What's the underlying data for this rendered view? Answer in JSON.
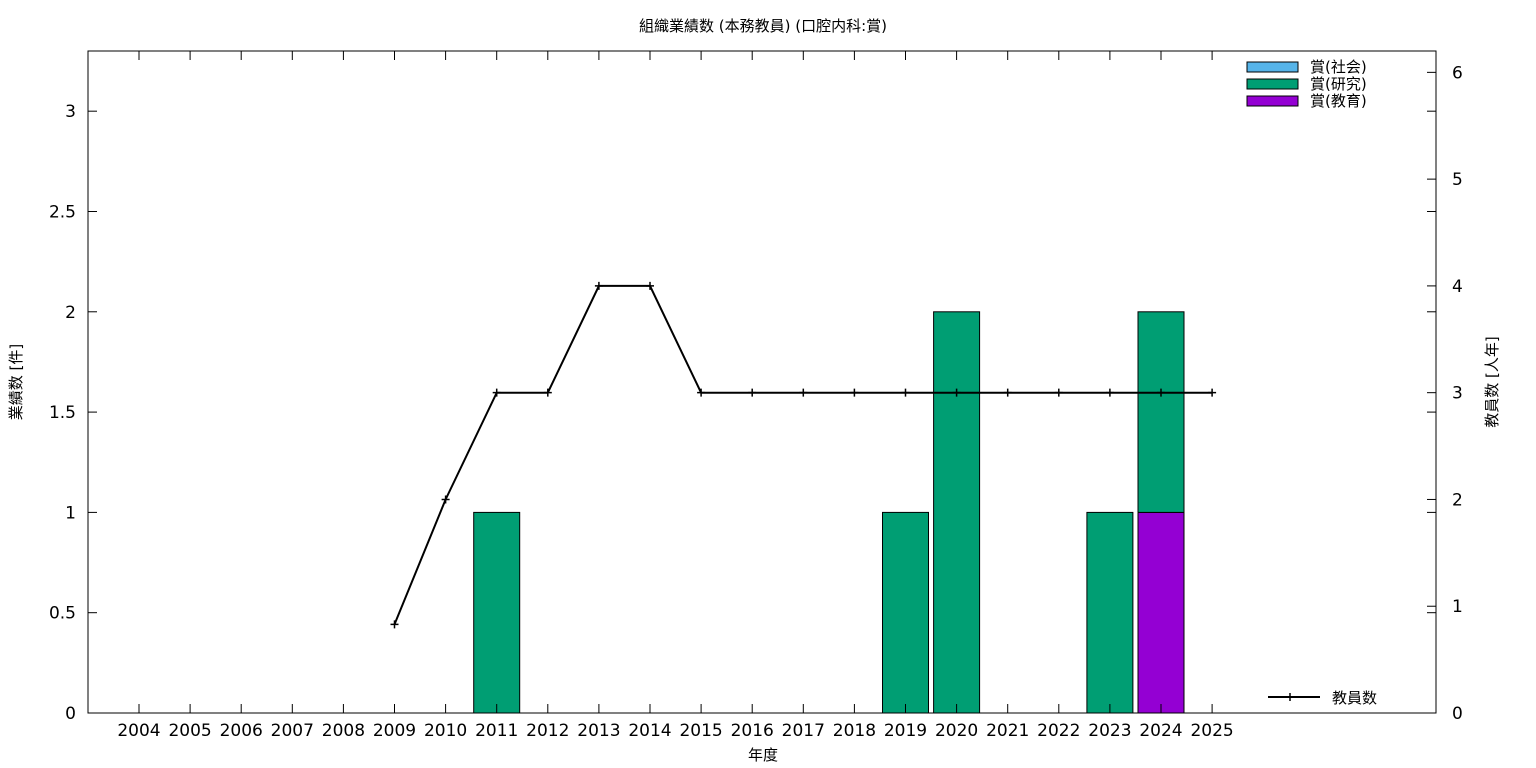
{
  "chart_data": {
    "type": "bar",
    "title": "組織業績数 (本務教員) (口腔内科:賞)",
    "xlabel": "年度",
    "ylabel": "業績数 [件]",
    "y2label": "教員数 [人年]",
    "categories": [
      "2004",
      "2005",
      "2006",
      "2007",
      "2008",
      "2009",
      "2010",
      "2011",
      "2012",
      "2013",
      "2014",
      "2015",
      "2016",
      "2017",
      "2018",
      "2019",
      "2020",
      "2021",
      "2022",
      "2023",
      "2024",
      "2025"
    ],
    "stacked": true,
    "ylim": [
      0,
      3.3
    ],
    "y_ticks": [
      0,
      0.5,
      1,
      1.5,
      2,
      2.5,
      3
    ],
    "y_tick_labels": [
      "0",
      "0.5",
      "1",
      "1.5",
      "2",
      "2.5",
      "3"
    ],
    "y2lim": [
      0,
      6.2
    ],
    "y2_ticks": [
      0,
      1,
      2,
      3,
      4,
      5,
      6
    ],
    "y2_tick_labels": [
      "0",
      "1",
      "2",
      "3",
      "4",
      "5",
      "6"
    ],
    "legend_position": "top-right",
    "series": [
      {
        "name": "賞(教育)",
        "color": "#9400d3",
        "values": [
          0,
          0,
          0,
          0,
          0,
          0,
          0,
          0,
          0,
          0,
          0,
          0,
          0,
          0,
          0,
          0,
          0,
          0,
          0,
          0,
          1,
          0
        ]
      },
      {
        "name": "賞(研究)",
        "color": "#009e73",
        "values": [
          0,
          0,
          0,
          0,
          0,
          0,
          0,
          1,
          0,
          0,
          0,
          0,
          0,
          0,
          0,
          1,
          2,
          0,
          0,
          1,
          1,
          0
        ]
      },
      {
        "name": "賞(社会)",
        "color": "#56b4e9",
        "values": [
          0,
          0,
          0,
          0,
          0,
          0,
          0,
          0,
          0,
          0,
          0,
          0,
          0,
          0,
          0,
          0,
          0,
          0,
          0,
          0,
          0,
          0
        ]
      }
    ],
    "legend_order": [
      "賞(社会)",
      "賞(研究)",
      "賞(教育)"
    ],
    "line_series": {
      "name": "教員数",
      "axis": "y2",
      "color": "#000000",
      "x": [
        "2009",
        "2010",
        "2011",
        "2012",
        "2013",
        "2014",
        "2015",
        "2016",
        "2017",
        "2018",
        "2019",
        "2020",
        "2021",
        "2022",
        "2023",
        "2024",
        "2025"
      ],
      "values": [
        0.83,
        2,
        3,
        3,
        4,
        4,
        3,
        3,
        3,
        3,
        3,
        3,
        3,
        3,
        3,
        3,
        3
      ]
    }
  }
}
